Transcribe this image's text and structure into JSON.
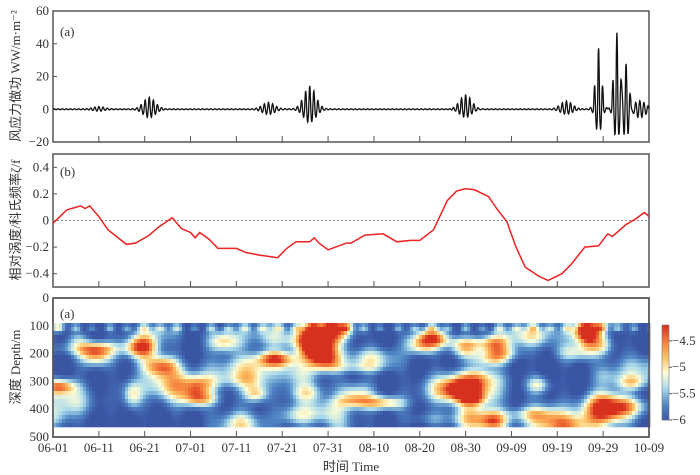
{
  "chart_data": [
    {
      "type": "line",
      "panel_label": "(a)",
      "ylabel": "风应力做功 WW/m·m⁻²",
      "ylim": [
        -20,
        60
      ],
      "yticks": [
        "60",
        "40",
        "20",
        "0",
        "−20"
      ],
      "ytick_values": [
        60,
        40,
        20,
        0,
        -20
      ],
      "color": "#111111",
      "bursts": [
        {
          "date": "06-11",
          "peak": 1.5,
          "trough": -1
        },
        {
          "date": "06-22",
          "peak": 7,
          "trough": -5
        },
        {
          "date": "07-18",
          "peak": 4,
          "trough": -3
        },
        {
          "date": "07-27",
          "peak": 14,
          "trough": -8
        },
        {
          "date": "08-30",
          "peak": 9,
          "trough": -5
        },
        {
          "date": "09-21",
          "peak": 5,
          "trough": -3
        },
        {
          "date": "09-28",
          "peak": 37,
          "trough": -15
        },
        {
          "date": "10-02",
          "peak": 47,
          "trough": -20
        },
        {
          "date": "10-04",
          "peak": 28,
          "trough": -20
        },
        {
          "date": "10-07",
          "peak": 5,
          "trough": -5
        }
      ]
    },
    {
      "type": "line",
      "panel_label": "(b)",
      "ylabel": "相对涡度/科氏频率ζ/f",
      "ylim": [
        -0.5,
        0.5
      ],
      "yticks": [
        "0.4",
        "0.2",
        "0",
        "−0.2",
        "−0.4"
      ],
      "ytick_values": [
        0.4,
        0.2,
        0,
        -0.2,
        -0.4
      ],
      "color": "#ee2222",
      "reference_line": 0,
      "x": [
        "06-01",
        "06-04",
        "06-07",
        "06-08",
        "06-09",
        "06-11",
        "06-13",
        "06-17",
        "06-19",
        "06-22",
        "06-24",
        "06-27",
        "06-29",
        "07-01",
        "07-02",
        "07-03",
        "07-05",
        "07-07",
        "07-11",
        "07-13",
        "07-16",
        "07-18",
        "07-20",
        "07-22",
        "07-24",
        "07-27",
        "07-28",
        "07-29",
        "07-31",
        "08-04",
        "08-05",
        "08-08",
        "08-12",
        "08-15",
        "08-18",
        "08-20",
        "08-23",
        "08-26",
        "08-28",
        "08-30",
        "09-01",
        "09-04",
        "09-06",
        "09-08",
        "09-10",
        "09-12",
        "09-15",
        "09-17",
        "09-20",
        "09-22",
        "09-25",
        "09-28",
        "09-30",
        "10-01",
        "10-04",
        "10-06",
        "10-08",
        "10-09"
      ],
      "y": [
        -0.02,
        0.08,
        0.11,
        0.09,
        0.11,
        0.03,
        -0.07,
        -0.18,
        -0.17,
        -0.11,
        -0.05,
        0.02,
        -0.06,
        -0.09,
        -0.13,
        -0.09,
        -0.14,
        -0.21,
        -0.21,
        -0.24,
        -0.26,
        -0.27,
        -0.28,
        -0.21,
        -0.16,
        -0.16,
        -0.13,
        -0.17,
        -0.22,
        -0.17,
        -0.17,
        -0.11,
        -0.1,
        -0.16,
        -0.15,
        -0.15,
        -0.07,
        0.15,
        0.22,
        0.24,
        0.23,
        0.18,
        0.08,
        -0.01,
        -0.2,
        -0.35,
        -0.42,
        -0.45,
        -0.4,
        -0.33,
        -0.2,
        -0.19,
        -0.1,
        -0.12,
        -0.03,
        0.01,
        0.06,
        0.03
      ]
    },
    {
      "type": "heatmap",
      "panel_label": "(a)",
      "ylabel": "深度 Depth/m",
      "ylim": [
        500,
        0
      ],
      "yticks": [
        "0",
        "100",
        "200",
        "300",
        "400",
        "500"
      ],
      "ytick_values": [
        0,
        100,
        200,
        300,
        400,
        500
      ],
      "data_depth_range": [
        90,
        455
      ],
      "colorbar": {
        "range": [
          -6,
          -4.2
        ],
        "ticks": [
          "−4.5",
          "−5",
          "−5.5",
          "−6"
        ],
        "tick_values": [
          -4.5,
          -5,
          -5.5,
          -6
        ],
        "colors": [
          "#3b55a5",
          "#4f86c4",
          "#a8d8ea",
          "#fefed6",
          "#fdc064",
          "#f47d3b",
          "#d7301f"
        ]
      },
      "hotspots": [
        {
          "date": "06-20",
          "depth": 170,
          "value": -4.3
        },
        {
          "date": "06-10",
          "depth": 200,
          "value": -4.8
        },
        {
          "date": "07-28",
          "depth": 115,
          "value": -4.3
        },
        {
          "date": "07-28",
          "depth": 175,
          "value": -4.4
        },
        {
          "date": "07-30",
          "depth": 215,
          "value": -4.5
        },
        {
          "date": "08-02",
          "depth": 100,
          "value": -4.6
        },
        {
          "date": "09-25",
          "depth": 115,
          "value": -4.4
        },
        {
          "date": "09-05",
          "depth": 165,
          "value": -4.8
        },
        {
          "date": "07-08",
          "depth": 150,
          "value": -4.9
        },
        {
          "date": "08-22",
          "depth": 135,
          "value": -4.9
        },
        {
          "date": "06-25",
          "depth": 240,
          "value": -4.9
        }
      ]
    },
    {
      "xlabel": "时间 Time",
      "xlim": [
        "06-01",
        "10-09"
      ],
      "xticks": [
        "06-01",
        "06-11",
        "06-21",
        "07-01",
        "07-11",
        "07-21",
        "07-31",
        "08-10",
        "08-20",
        "08-30",
        "09-09",
        "09-19",
        "09-29",
        "10-09"
      ]
    }
  ]
}
